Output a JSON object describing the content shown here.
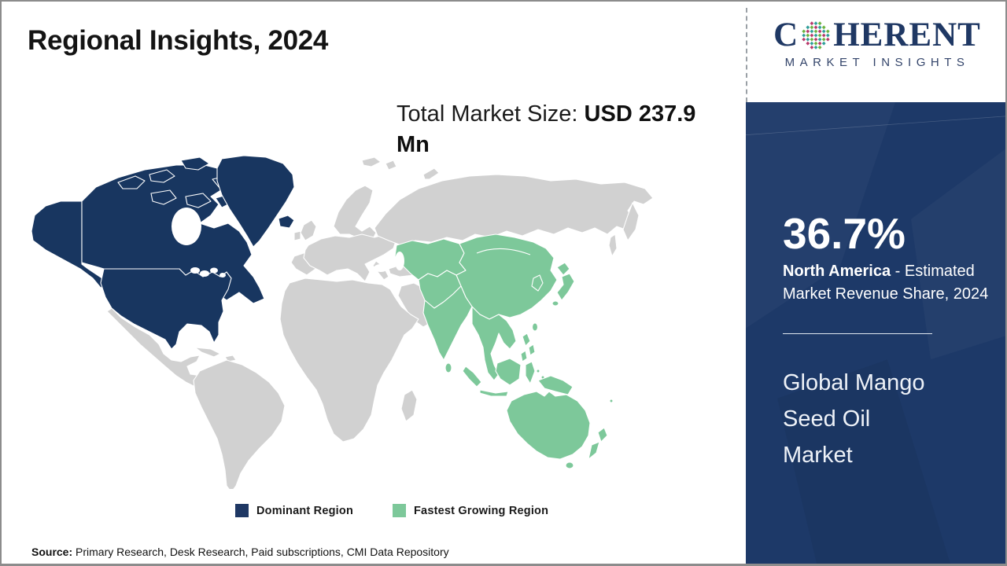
{
  "header": {
    "title": "Regional Insights, 2024"
  },
  "logo": {
    "prefix": "C",
    "suffix": "HERENT",
    "subtitle": "MARKET INSIGHTS",
    "globe_colors": [
      "#2f9e99",
      "#6db33f",
      "#b8396b"
    ],
    "brand_navy": "#1f3864"
  },
  "market": {
    "total_label": "Total Market Size: ",
    "total_value": "USD 237.9 Mn"
  },
  "sidebar": {
    "share_value": "36.7%",
    "share_region": "North America",
    "share_desc": " - Estimated Market Revenue Share, 2024",
    "market_name": "Global Mango Seed Oil Market",
    "background_color": "#1d3968"
  },
  "legend": {
    "items": [
      {
        "label": "Dominant Region",
        "color": "#1f3864"
      },
      {
        "label": "Fastest Growing Region",
        "color": "#7dc89a"
      }
    ]
  },
  "source": {
    "label": "Source:",
    "text": " Primary Research, Desk Research, Paid subscriptions, CMI Data Repository"
  },
  "chart_data": {
    "type": "choropleth_map",
    "title": "Regional Insights, 2024",
    "subject": "Global Mango Seed Oil Market",
    "total_market_size": "USD 237.9 Mn",
    "year": "2024",
    "regions": [
      {
        "name": "North America",
        "category": "Dominant Region",
        "value": 36.7,
        "value_label": "36.7% - Estimated Market Revenue Share, 2024",
        "color": "#183660"
      },
      {
        "name": "Asia Pacific",
        "category": "Fastest Growing Region",
        "color": "#7dc89a"
      },
      {
        "name": "Rest of World",
        "category": "Not highlighted",
        "color": "#d1d1d1"
      }
    ],
    "legend_position": "bottom",
    "map_colors": {
      "dominant": "#183660",
      "fastest_growing": "#7dc89a",
      "other": "#d1d1d1",
      "ocean": "#ffffff"
    }
  }
}
